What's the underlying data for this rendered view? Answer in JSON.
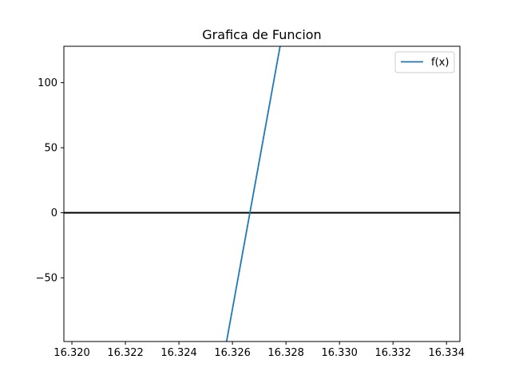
{
  "chart_data": {
    "type": "line",
    "title": "Grafica de Funcion",
    "xlabel": "",
    "ylabel": "",
    "xlim": [
      16.3197,
      16.3345
    ],
    "ylim": [
      -99,
      128
    ],
    "xticks": [
      16.32,
      16.322,
      16.324,
      16.326,
      16.328,
      16.33,
      16.332,
      16.334
    ],
    "xtick_labels": [
      "16.320",
      "16.322",
      "16.324",
      "16.326",
      "16.328",
      "16.330",
      "16.332",
      "16.334"
    ],
    "yticks": [
      -50,
      0,
      50,
      100
    ],
    "ytick_labels": [
      "−50",
      "0",
      "50",
      "100"
    ],
    "grid": false,
    "legend": "top-right",
    "series": [
      {
        "name": "f(x)",
        "color": "#1f77b4",
        "x": [
          16.32578,
          16.32778
        ],
        "y": [
          -99,
          128
        ]
      }
    ],
    "hlines": [
      {
        "y": 0,
        "color": "#000000"
      }
    ]
  }
}
